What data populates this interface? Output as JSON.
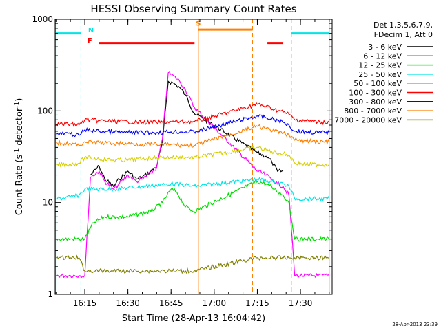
{
  "chart_data": {
    "type": "line",
    "title": "HESSI Observing Summary Count Rates",
    "xlabel": "Start Time (28-Apr-13 16:04:42)",
    "ylabel": "Count Rate (s⁻¹ detector⁻¹)",
    "ylabel_parts": [
      "Count Rate (s",
      "-1",
      " detector",
      "-1",
      ")"
    ],
    "y_scale": "log",
    "ylim": [
      1,
      1000
    ],
    "y_ticks": [
      1,
      10,
      100,
      1000
    ],
    "y_tick_labels": [
      "1",
      "10",
      "100",
      "1000"
    ],
    "xlim": [
      "16:04:42",
      "17:41:00"
    ],
    "x_ticks": [
      "16:15",
      "16:30",
      "16:45",
      "17:00",
      "17:15",
      "17:30"
    ],
    "x_tick_labels": [
      "16:15",
      "16:30",
      "16:45",
      "17:00",
      "17:15",
      "17:30"
    ],
    "grid": false,
    "legend_position": "right",
    "legend_header": [
      "Det 1,3,5,6,7,9,",
      "FDecim 1, Att 0"
    ],
    "timestamp": "28-Apr-2013 23:39",
    "colors": {
      "frame": "#000000",
      "night": "#00e5e5",
      "saa": "#ff7f00",
      "flare": "#ff0000"
    },
    "flags": [
      {
        "label": "N",
        "color": "#00e5e5",
        "start": "16:04:42",
        "end": "16:13:40",
        "level_start": 700,
        "level_end": 700
      },
      {
        "label": "N",
        "color": "#00e5e5",
        "start": "17:26:50",
        "end": "17:40:00",
        "level_start": 700,
        "level_end": 700
      },
      {
        "label": "F",
        "color": "#ff0000",
        "start": "16:20:00",
        "end": "16:53:10",
        "level_start": 550,
        "level_end": 550
      },
      {
        "label": "F",
        "color": "#ff0000",
        "start": "17:18:30",
        "end": "17:24:00",
        "level_start": 550,
        "level_end": 550
      },
      {
        "label": "S",
        "color": "#ff7f00",
        "start": "16:54:30",
        "end": "17:13:20",
        "level_start": 770,
        "level_end": 770
      }
    ],
    "flag_labels": [
      {
        "text": "N",
        "color": "#00e5e5",
        "time": "16:17:10",
        "level": 720
      },
      {
        "text": "F",
        "color": "#ff0000",
        "time": "16:16:45",
        "level": 555
      },
      {
        "text": "S",
        "color": "#ff7f00",
        "time": "16:54:30",
        "level": 850
      }
    ],
    "lines": [
      {
        "color": "#00e5e5",
        "dash": false,
        "time": "16:04:50"
      },
      {
        "color": "#00e5e5",
        "dash": true,
        "time": "16:13:40"
      },
      {
        "color": "#00e5e5",
        "dash": true,
        "time": "17:26:50"
      },
      {
        "color": "#00e5e5",
        "dash": false,
        "time": "17:40:00"
      },
      {
        "color": "#ff7f00",
        "dash": false,
        "time": "16:54:30"
      },
      {
        "color": "#ff7f00",
        "dash": true,
        "time": "17:13:20"
      }
    ],
    "gap": [
      "16:53:10",
      "17:15:00"
    ],
    "series": [
      {
        "name": "3 - 6 keV",
        "color": "#000000",
        "x": [
          "16:05",
          "16:10",
          "16:13",
          "16:15",
          "16:17",
          "16:20",
          "16:22",
          "16:25",
          "16:27",
          "16:30",
          "16:33",
          "16:35",
          "16:38",
          "16:40",
          "16:42",
          "16:44",
          "16:46",
          "16:48",
          "16:50",
          "16:53",
          "17:15",
          "17:18",
          "17:20",
          "17:22",
          "17:24",
          "17:26"
        ],
        "y": [
          null,
          null,
          null,
          null,
          20,
          25,
          18,
          15,
          18,
          22,
          18,
          19,
          22,
          25,
          45,
          210,
          200,
          180,
          150,
          95,
          35,
          32,
          28,
          22,
          22,
          null
        ]
      },
      {
        "name": "6 - 12 keV",
        "color": "#ff00ff",
        "x": [
          "16:05",
          "16:10",
          "16:13",
          "16:15",
          "16:17",
          "16:20",
          "16:22",
          "16:25",
          "16:27",
          "16:30",
          "16:33",
          "16:35",
          "16:38",
          "16:40",
          "16:42",
          "16:44",
          "16:46",
          "16:48",
          "16:50",
          "16:53",
          "17:15",
          "17:18",
          "17:20",
          "17:22",
          "17:24",
          "17:26",
          "17:28",
          "17:30",
          "17:33",
          "17:36",
          "17:40"
        ],
        "y": [
          1.6,
          1.6,
          1.6,
          1.6,
          19,
          22,
          17,
          14,
          16,
          20,
          17,
          18,
          21,
          24,
          50,
          260,
          240,
          210,
          170,
          110,
          22,
          20,
          18,
          16,
          15,
          12,
          1.6,
          1.6,
          1.6,
          1.6,
          1.6
        ]
      },
      {
        "name": "12 - 25 keV",
        "color": "#00e000",
        "x": [
          "16:05",
          "16:10",
          "16:13",
          "16:15",
          "16:18",
          "16:22",
          "16:26",
          "16:30",
          "16:34",
          "16:38",
          "16:42",
          "16:45",
          "16:47",
          "16:50",
          "16:53",
          "17:15",
          "17:18",
          "17:21",
          "17:24",
          "17:26",
          "17:28",
          "17:32",
          "17:36",
          "17:40"
        ],
        "y": [
          4,
          4,
          4,
          4,
          6,
          7,
          7,
          7,
          7.5,
          8,
          10,
          14,
          13,
          9,
          8,
          17,
          16,
          14,
          12,
          10,
          4,
          4,
          4,
          4
        ]
      },
      {
        "name": "25 - 50 keV",
        "color": "#00e5e5",
        "x": [
          "16:05",
          "16:10",
          "16:13",
          "16:15",
          "16:20",
          "16:25",
          "16:30",
          "16:35",
          "16:40",
          "16:45",
          "16:50",
          "16:53",
          "17:15",
          "17:20",
          "17:24",
          "17:26",
          "17:28",
          "17:32",
          "17:36",
          "17:40"
        ],
        "y": [
          11,
          11.5,
          12,
          14,
          14,
          14,
          14.5,
          15,
          15.5,
          16,
          15.5,
          15,
          18,
          17,
          16,
          15,
          11,
          11,
          11,
          11
        ]
      },
      {
        "name": "50 - 100 keV",
        "color": "#d8d000",
        "x": [
          "16:05",
          "16:10",
          "16:13",
          "16:15",
          "16:20",
          "16:25",
          "16:30",
          "16:35",
          "16:40",
          "16:45",
          "16:50",
          "16:53",
          "17:15",
          "17:20",
          "17:24",
          "17:26",
          "17:28",
          "17:32",
          "17:36",
          "17:40"
        ],
        "y": [
          26,
          26,
          27,
          31,
          30,
          29,
          29,
          30,
          31,
          31,
          31,
          31,
          40,
          36,
          34,
          33,
          27,
          26,
          26,
          26
        ]
      },
      {
        "name": "100 - 300 keV",
        "color": "#ff0000",
        "x": [
          "16:05",
          "16:10",
          "16:13",
          "16:15",
          "16:20",
          "16:25",
          "16:30",
          "16:35",
          "16:40",
          "16:45",
          "16:50",
          "16:53",
          "17:15",
          "17:18",
          "17:21",
          "17:24",
          "17:26",
          "17:28",
          "17:32",
          "17:36",
          "17:40"
        ],
        "y": [
          72,
          72,
          70,
          80,
          78,
          77,
          76,
          75,
          75,
          76,
          76,
          76,
          118,
          112,
          104,
          97,
          92,
          80,
          78,
          76,
          75
        ]
      },
      {
        "name": "300 - 800 keV",
        "color": "#0000ff",
        "x": [
          "16:05",
          "16:10",
          "16:13",
          "16:15",
          "16:20",
          "16:25",
          "16:30",
          "16:35",
          "16:40",
          "16:45",
          "16:50",
          "16:53",
          "17:15",
          "17:18",
          "17:21",
          "17:24",
          "17:26",
          "17:28",
          "17:32",
          "17:36",
          "17:40"
        ],
        "y": [
          56,
          56,
          54,
          62,
          60,
          59,
          58,
          58,
          58,
          59,
          59,
          59,
          88,
          84,
          80,
          75,
          70,
          60,
          59,
          58,
          58
        ]
      },
      {
        "name": "800 - 7000 keV",
        "color": "#ff7f00",
        "x": [
          "16:05",
          "16:10",
          "16:13",
          "16:15",
          "16:20",
          "16:25",
          "16:30",
          "16:35",
          "16:40",
          "16:45",
          "16:50",
          "16:53",
          "17:15",
          "17:18",
          "17:21",
          "17:24",
          "17:26",
          "17:28",
          "17:32",
          "17:36",
          "17:40"
        ],
        "y": [
          45,
          44,
          42,
          46,
          45,
          44,
          44,
          43,
          43,
          43,
          42,
          42,
          68,
          64,
          60,
          57,
          55,
          48,
          47,
          46,
          46
        ]
      },
      {
        "name": "7000 - 20000 keV",
        "color": "#808000",
        "x": [
          "16:05",
          "16:10",
          "16:13",
          "16:15",
          "16:20",
          "16:25",
          "16:30",
          "16:35",
          "16:40",
          "16:45",
          "16:50",
          "16:53",
          "17:15",
          "17:18",
          "17:21",
          "17:24",
          "17:26",
          "17:28",
          "17:32",
          "17:36",
          "17:40"
        ],
        "y": [
          2.5,
          2.5,
          2.5,
          1.8,
          1.8,
          1.8,
          1.8,
          1.8,
          1.8,
          1.8,
          1.8,
          1.8,
          2.5,
          2.5,
          2.5,
          2.5,
          2.5,
          2.5,
          2.5,
          2.5,
          2.5
        ]
      }
    ]
  }
}
